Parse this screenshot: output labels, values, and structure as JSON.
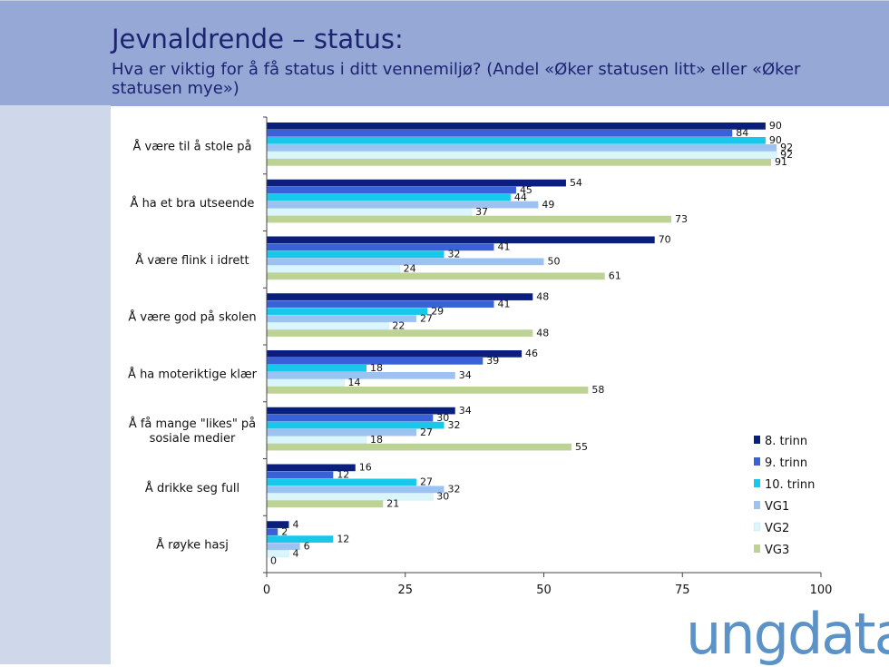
{
  "header": {
    "title": "Jevnaldrende – status:",
    "subtitle": "Hva er viktig for å få status i ditt vennemiljø? (Andel «Øker statusen litt» eller «Øker statusen mye»)"
  },
  "logo": {
    "text": "ungdata"
  },
  "chart_data": {
    "type": "bar",
    "orientation": "horizontal",
    "categories": [
      "Å være til å stole på",
      "Å ha et bra utseende",
      "Å være flink i idrett",
      "Å være god på skolen",
      "Å ha moteriktige klær",
      "Å få mange \"likes\" på sosiale medier",
      "Å drikke seg full",
      "Å røyke hasj"
    ],
    "series": [
      {
        "name": "8. trinn",
        "color": "#0a1f7d",
        "values": [
          90,
          54,
          70,
          48,
          46,
          34,
          16,
          4
        ]
      },
      {
        "name": "9. trinn",
        "color": "#3a62d8",
        "values": [
          84,
          45,
          41,
          41,
          39,
          30,
          12,
          2
        ]
      },
      {
        "name": "10. trinn",
        "color": "#18c8ea",
        "values": [
          90,
          44,
          32,
          29,
          18,
          32,
          27,
          12
        ]
      },
      {
        "name": "VG1",
        "color": "#9cc2f2",
        "values": [
          92,
          49,
          50,
          27,
          34,
          27,
          32,
          6
        ]
      },
      {
        "name": "VG2",
        "color": "#daf6fb",
        "values": [
          92,
          37,
          24,
          22,
          14,
          18,
          30,
          4
        ]
      },
      {
        "name": "VG3",
        "color": "#bdd395",
        "values": [
          91,
          73,
          61,
          48,
          58,
          55,
          21,
          0
        ]
      }
    ],
    "xlim": [
      0,
      100
    ],
    "xticks": [
      "0",
      "25",
      "50",
      "75",
      "100"
    ],
    "legend_position": "bottom-right",
    "grid": false
  }
}
